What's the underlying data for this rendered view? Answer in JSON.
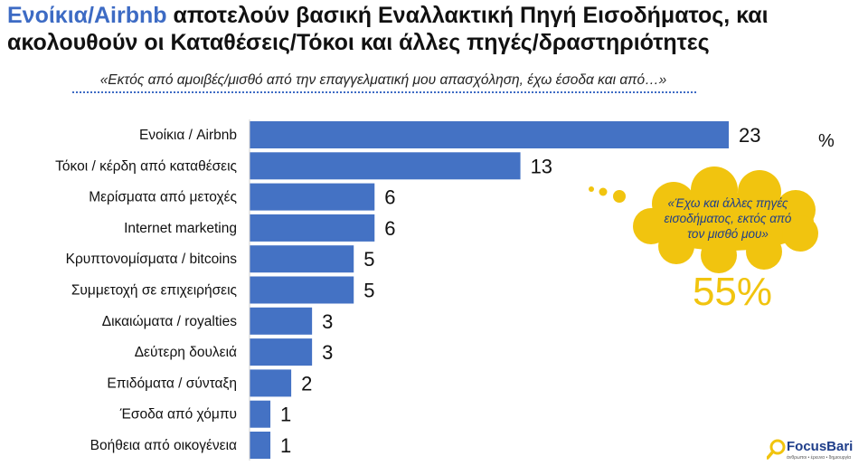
{
  "title": {
    "highlight": "Ενοίκια/Airbnb",
    "line1_rest": " αποτελούν βασική Εναλλακτική Πηγή Εισοδήματος, και",
    "line2": "ακολουθούν οι Καταθέσεις/Τόκοι και άλλες πηγές/δραστηριότητες"
  },
  "subtitle": "«Εκτός από αμοιβές/μισθό από την επαγγελματική μου απασχόληση, έχω έσοδα και από…»",
  "unit_label": "%",
  "callout": {
    "text": "«Έχω και άλλες πηγές εισοδήματος, εκτός από τον μισθό μου»",
    "percent": "55%"
  },
  "logo": {
    "name": "FocusBari",
    "tagline": "άνθρωποι • έρευνα • δημιουργία"
  },
  "colors": {
    "bar": "#4472c4",
    "accent": "#f1c40f",
    "title_highlight": "#3d6bc4"
  },
  "chart_data": {
    "type": "bar",
    "orientation": "horizontal",
    "categories": [
      "Ενοίκια / Airbnb",
      "Τόκοι / κέρδη από καταθέσεις",
      "Μερίσματα από μετοχές",
      "Internet marketing",
      "Κρυπτονομίσματα / bitcoins",
      "Συμμετοχή σε επιχειρήσεις",
      "Δικαιώματα / royalties",
      "Δεύτερη δουλειά",
      "Επιδόματα / σύνταξη",
      "Έσοδα από χόμπυ",
      "Βοήθεια από οικογένεια"
    ],
    "values": [
      23,
      13,
      6,
      6,
      5,
      5,
      3,
      3,
      2,
      1,
      1
    ],
    "data_labels": [
      "23",
      "13",
      "6",
      "6",
      "5",
      "5",
      "3",
      "3",
      "2",
      "1",
      "1"
    ],
    "xlim": [
      0,
      23
    ]
  }
}
